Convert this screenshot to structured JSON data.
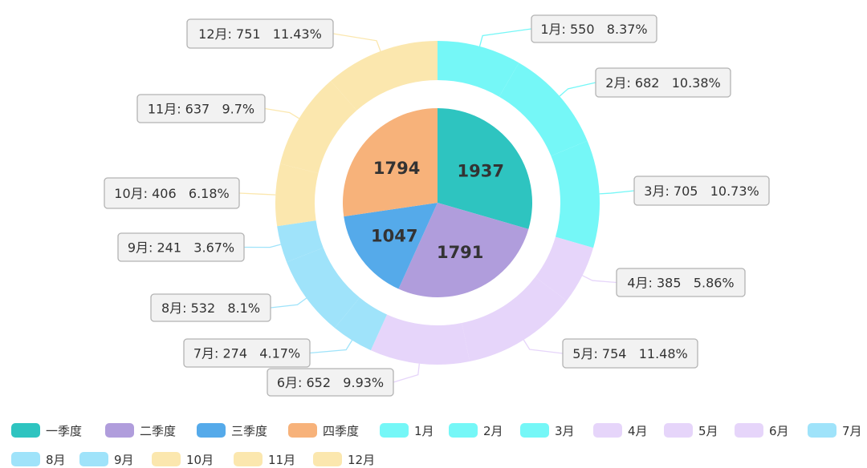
{
  "chart_data": {
    "type": "pie",
    "subtype": "nested-donut",
    "inner_ring": {
      "categories": [
        "一季度",
        "二季度",
        "三季度",
        "四季度"
      ],
      "values": [
        1937,
        1791,
        1047,
        1794
      ],
      "colors": [
        "#2ec4c0",
        "#b09ddc",
        "#55aaea",
        "#f7b27a"
      ]
    },
    "outer_ring": {
      "categories": [
        "1月",
        "2月",
        "3月",
        "4月",
        "5月",
        "6月",
        "7月",
        "8月",
        "9月",
        "10月",
        "11月",
        "12月"
      ],
      "values": [
        550,
        682,
        705,
        385,
        754,
        652,
        274,
        532,
        241,
        406,
        637,
        751
      ],
      "percents": [
        "8.37%",
        "10.38%",
        "10.73%",
        "5.86%",
        "11.48%",
        "9.93%",
        "4.17%",
        "8.1%",
        "3.67%",
        "6.18%",
        "9.7%",
        "11.43%"
      ],
      "colors": [
        "#75f7f7",
        "#75f7f7",
        "#75f7f7",
        "#e6d5fa",
        "#e6d5fa",
        "#e6d5fa",
        "#9fe3fa",
        "#9fe3fa",
        "#9fe3fa",
        "#fbe7ae",
        "#fbe7ae",
        "#fbe7ae"
      ]
    },
    "legend": {
      "position": "bottom",
      "items": [
        "一季度",
        "二季度",
        "三季度",
        "四季度",
        "1月",
        "2月",
        "3月",
        "4月",
        "5月",
        "6月",
        "7月",
        "8月",
        "9月",
        "10月",
        "11月",
        "12月"
      ],
      "colors": [
        "#2ec4c0",
        "#b09ddc",
        "#55aaea",
        "#f7b27a",
        "#75f7f7",
        "#75f7f7",
        "#75f7f7",
        "#e6d5fa",
        "#e6d5fa",
        "#e6d5fa",
        "#9fe3fa",
        "#9fe3fa",
        "#9fe3fa",
        "#fbe7ae",
        "#fbe7ae",
        "#fbe7ae"
      ]
    }
  }
}
